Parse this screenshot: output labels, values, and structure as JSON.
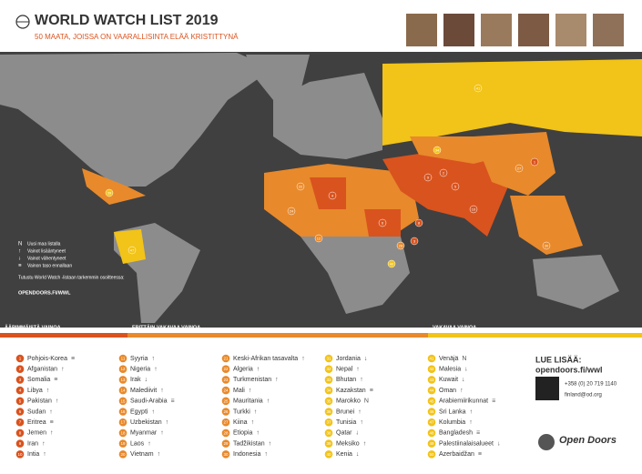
{
  "header": {
    "title": "WORLD WATCH LIST 2019",
    "subtitle": "50 MAATA, JOISSA ON VAARALLISINTA ELÄÄ KRISTITTYNÄ"
  },
  "legend": {
    "items": [
      {
        "symbol": "N",
        "label": "Uusi maa listalla"
      },
      {
        "symbol": "↑",
        "label": "Vainot lisääntyneet"
      },
      {
        "symbol": "↓",
        "label": "Vainot vähentyneet"
      },
      {
        "symbol": "≡",
        "label": "Vainon taso ennallaan"
      }
    ],
    "note": "Tutustu World Watch -listaan tarkemmin osoitteessa:",
    "link": "OPENDOORS.FI/WWL"
  },
  "bands": [
    {
      "name": "ÄÄRIMMÄISTÄ VAINOA",
      "color": "#d9531e",
      "countries": [
        {
          "rank": 1,
          "name": "Pohjois-Korea",
          "trend": "≡"
        },
        {
          "rank": 2,
          "name": "Afganistan",
          "trend": "↑"
        },
        {
          "rank": 3,
          "name": "Somalia",
          "trend": "≡"
        },
        {
          "rank": 4,
          "name": "Libya",
          "trend": "↑"
        },
        {
          "rank": 5,
          "name": "Pakistan",
          "trend": "↑"
        },
        {
          "rank": 6,
          "name": "Sudan",
          "trend": "↑"
        },
        {
          "rank": 7,
          "name": "Eritrea",
          "trend": "≡"
        },
        {
          "rank": 8,
          "name": "Jemen",
          "trend": "↑"
        },
        {
          "rank": 9,
          "name": "Iran",
          "trend": "↑"
        },
        {
          "rank": 10,
          "name": "Intia",
          "trend": "↑"
        }
      ]
    },
    {
      "name": "ERITTÄIN VAKAVAA VAINOA",
      "color": "#e8892b",
      "countries": [
        {
          "rank": 11,
          "name": "Syyria",
          "trend": "↑"
        },
        {
          "rank": 12,
          "name": "Nigeria",
          "trend": "↑"
        },
        {
          "rank": 13,
          "name": "Irak",
          "trend": "↓"
        },
        {
          "rank": 14,
          "name": "Malediivit",
          "trend": "↑"
        },
        {
          "rank": 15,
          "name": "Saudi-Arabia",
          "trend": "≡"
        },
        {
          "rank": 16,
          "name": "Egypti",
          "trend": "↑"
        },
        {
          "rank": 17,
          "name": "Uzbekistan",
          "trend": "↑"
        },
        {
          "rank": 18,
          "name": "Myanmar",
          "trend": "↑"
        },
        {
          "rank": 19,
          "name": "Laos",
          "trend": "↑"
        },
        {
          "rank": 20,
          "name": "Vietnam",
          "trend": "↑"
        },
        {
          "rank": 21,
          "name": "Keski-Afrikan tasavalta",
          "trend": "↑"
        },
        {
          "rank": 22,
          "name": "Algeria",
          "trend": "↑"
        },
        {
          "rank": 23,
          "name": "Turkmenistan",
          "trend": "↑"
        },
        {
          "rank": 24,
          "name": "Mali",
          "trend": "↑"
        },
        {
          "rank": 25,
          "name": "Mauritania",
          "trend": "↑"
        },
        {
          "rank": 26,
          "name": "Turkki",
          "trend": "↑"
        },
        {
          "rank": 27,
          "name": "Kiina",
          "trend": "↑"
        },
        {
          "rank": 28,
          "name": "Etiopia",
          "trend": "↑"
        },
        {
          "rank": 29,
          "name": "Tadžikistan",
          "trend": "↑"
        },
        {
          "rank": 30,
          "name": "Indonesia",
          "trend": "↑"
        }
      ]
    },
    {
      "name": "VAKAVAA VAINOA",
      "color": "#f2c318",
      "countries": [
        {
          "rank": 31,
          "name": "Jordania",
          "trend": "↓"
        },
        {
          "rank": 32,
          "name": "Nepal",
          "trend": "↑"
        },
        {
          "rank": 33,
          "name": "Bhutan",
          "trend": "↑"
        },
        {
          "rank": 34,
          "name": "Kazakstan",
          "trend": "≡"
        },
        {
          "rank": 35,
          "name": "Marokko",
          "trend": "N"
        },
        {
          "rank": 36,
          "name": "Brunei",
          "trend": "↑"
        },
        {
          "rank": 37,
          "name": "Tunisia",
          "trend": "↑"
        },
        {
          "rank": 38,
          "name": "Qatar",
          "trend": "↓"
        },
        {
          "rank": 39,
          "name": "Meksiko",
          "trend": "↑"
        },
        {
          "rank": 40,
          "name": "Kenia",
          "trend": "↓"
        },
        {
          "rank": 41,
          "name": "Venäjä",
          "trend": "N"
        },
        {
          "rank": 42,
          "name": "Malesia",
          "trend": "↓"
        },
        {
          "rank": 43,
          "name": "Kuwait",
          "trend": "↓"
        },
        {
          "rank": 44,
          "name": "Oman",
          "trend": "↑"
        },
        {
          "rank": 45,
          "name": "Arabiemiirikunnat",
          "trend": "≡"
        },
        {
          "rank": 46,
          "name": "Sri Lanka",
          "trend": "↑"
        },
        {
          "rank": 47,
          "name": "Kolumbia",
          "trend": "↑"
        },
        {
          "rank": 48,
          "name": "Bangladesh",
          "trend": "≡"
        },
        {
          "rank": 49,
          "name": "Palestiinalaisalueet",
          "trend": "↓"
        },
        {
          "rank": 50,
          "name": "Azerbaidžan",
          "trend": "≡"
        }
      ]
    }
  ],
  "contact": {
    "heading": "LUE LISÄÄ:",
    "url": "opendoors.fi/wwl",
    "phone": "+358 (0) 20 719 1140",
    "email": "finland@od.org",
    "brand": "Open Doors"
  }
}
